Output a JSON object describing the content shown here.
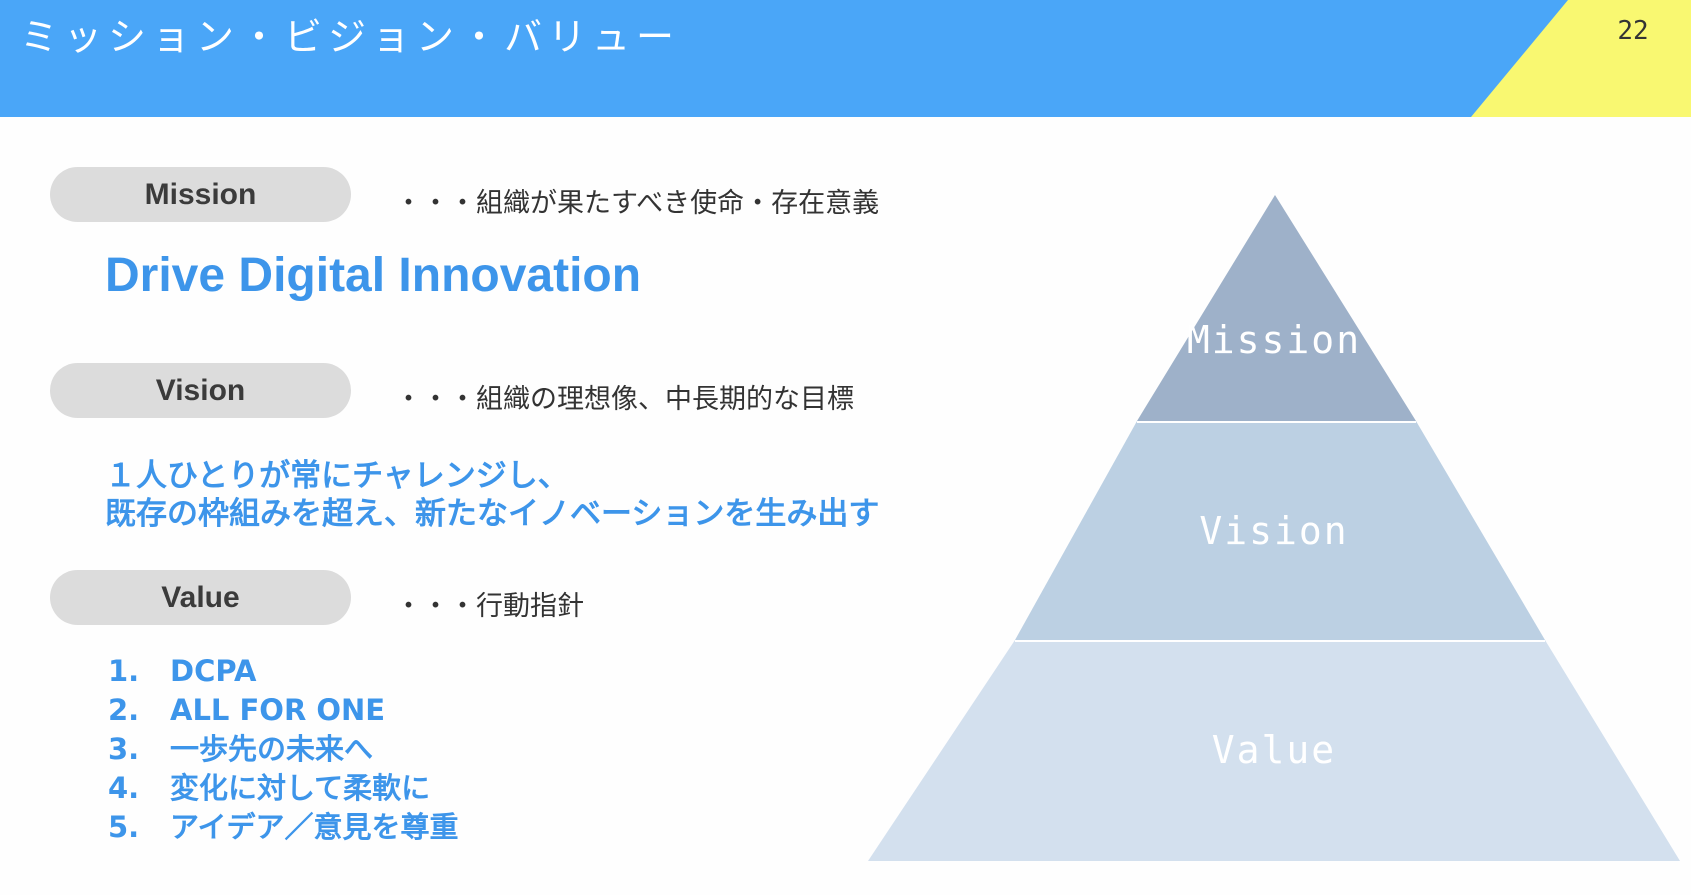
{
  "header": {
    "title": "ミッション・ビジョン・バリュー",
    "page_number": "22",
    "color": "#4aa6f8",
    "accent_color": "#f9f871"
  },
  "mission": {
    "label": "Mission",
    "description": "・・・組織が果たすべき使命・存在意義",
    "statement": "Drive Digital Innovation"
  },
  "vision": {
    "label": "Vision",
    "description": "・・・組織の理想像、中長期的な目標",
    "statement_lines": [
      "１人ひとりが常にチャレンジし、",
      "既存の枠組みを超え、新たなイノベーションを生み出す"
    ]
  },
  "value": {
    "label": "Value",
    "description": "・・・行動指針",
    "items": [
      {
        "num": "1.",
        "text": "DCPA"
      },
      {
        "num": "2.",
        "text": "ALL FOR ONE"
      },
      {
        "num": "3.",
        "text": "一歩先の未来へ"
      },
      {
        "num": "4.",
        "text": "変化に対して柔軟に"
      },
      {
        "num": "5.",
        "text": "アイデア／意見を尊重"
      }
    ]
  },
  "pyramid": {
    "tiers": [
      {
        "label": "Mission",
        "color": "#9eb1c9"
      },
      {
        "label": "Vision",
        "color": "#bcd0e3"
      },
      {
        "label": "Value",
        "color": "#d3e0ee"
      }
    ]
  },
  "accent_text_color": "#3d95ea"
}
